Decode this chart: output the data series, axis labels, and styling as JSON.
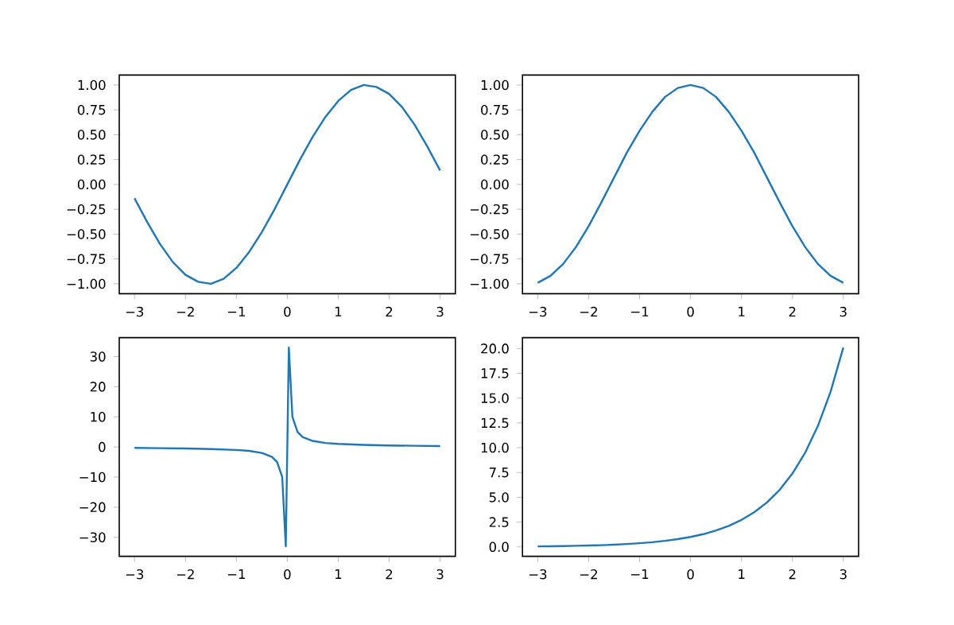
{
  "chart_data": [
    {
      "type": "line",
      "x": [
        -3,
        -2.75,
        -2.5,
        -2.25,
        -2,
        -1.75,
        -1.5,
        -1.25,
        -1,
        -0.75,
        -0.5,
        -0.25,
        0,
        0.25,
        0.5,
        0.75,
        1,
        1.25,
        1.5,
        1.75,
        2,
        2.25,
        2.5,
        2.75,
        3
      ],
      "series": [
        {
          "color": "#1f77b4",
          "values": [
            -0.14,
            -0.38,
            -0.6,
            -0.78,
            -0.91,
            -0.98,
            -1.0,
            -0.95,
            -0.84,
            -0.68,
            -0.48,
            -0.25,
            0,
            0.25,
            0.48,
            0.68,
            0.84,
            0.95,
            1.0,
            0.98,
            0.91,
            0.78,
            0.6,
            0.38,
            0.14
          ]
        }
      ],
      "xlim": [
        -3.3,
        3.3
      ],
      "ylim": [
        -1.1,
        1.1
      ],
      "xticks": [
        {
          "value": -3,
          "label": "−3"
        },
        {
          "value": -2,
          "label": "−2"
        },
        {
          "value": -1,
          "label": "−1"
        },
        0,
        1,
        2,
        3
      ],
      "yticks": [
        {
          "value": -1,
          "label": "−1.00"
        },
        {
          "value": -0.75,
          "label": "−0.75"
        },
        {
          "value": -0.5,
          "label": "−0.50"
        },
        {
          "value": -0.25,
          "label": "−0.25"
        },
        {
          "value": 0,
          "label": "0.00"
        },
        {
          "value": 0.25,
          "label": "0.25"
        },
        {
          "value": 0.5,
          "label": "0.50"
        },
        {
          "value": 0.75,
          "label": "0.75"
        },
        {
          "value": 1,
          "label": "1.00"
        }
      ]
    },
    {
      "type": "line",
      "x": [
        -3,
        -2.75,
        -2.5,
        -2.25,
        -2,
        -1.75,
        -1.5,
        -1.25,
        -1,
        -0.75,
        -0.5,
        -0.25,
        0,
        0.25,
        0.5,
        0.75,
        1,
        1.25,
        1.5,
        1.75,
        2,
        2.25,
        2.5,
        2.75,
        3
      ],
      "series": [
        {
          "color": "#1f77b4",
          "values": [
            -0.99,
            -0.92,
            -0.8,
            -0.63,
            -0.42,
            -0.18,
            0.07,
            0.32,
            0.54,
            0.73,
            0.88,
            0.97,
            1.0,
            0.97,
            0.88,
            0.73,
            0.54,
            0.32,
            0.07,
            -0.18,
            -0.42,
            -0.63,
            -0.8,
            -0.92,
            -0.99
          ]
        }
      ],
      "xlim": [
        -3.3,
        3.3
      ],
      "ylim": [
        -1.1,
        1.1
      ],
      "xticks": [
        {
          "value": -3,
          "label": "−3"
        },
        {
          "value": -2,
          "label": "−2"
        },
        {
          "value": -1,
          "label": "−1"
        },
        0,
        1,
        2,
        3
      ],
      "yticks": [
        {
          "value": -1,
          "label": "−1.00"
        },
        {
          "value": -0.75,
          "label": "−0.75"
        },
        {
          "value": -0.5,
          "label": "−0.50"
        },
        {
          "value": -0.25,
          "label": "−0.25"
        },
        {
          "value": 0,
          "label": "0.00"
        },
        {
          "value": 0.25,
          "label": "0.25"
        },
        {
          "value": 0.5,
          "label": "0.50"
        },
        {
          "value": 0.75,
          "label": "0.75"
        },
        {
          "value": 1,
          "label": "1.00"
        }
      ]
    },
    {
      "type": "line",
      "x": [
        -3,
        -2.5,
        -2,
        -1.5,
        -1,
        -0.75,
        -0.5,
        -0.3,
        -0.2,
        -0.1,
        -0.03,
        0.03,
        0.1,
        0.2,
        0.3,
        0.5,
        0.75,
        1,
        1.5,
        2,
        2.5,
        3
      ],
      "series": [
        {
          "color": "#1f77b4",
          "values": [
            -0.3,
            -0.4,
            -0.5,
            -0.7,
            -1,
            -1.3,
            -2,
            -3.3,
            -5,
            -10,
            -33,
            33,
            10,
            5,
            3.3,
            2,
            1.3,
            1,
            0.7,
            0.5,
            0.4,
            0.3
          ]
        }
      ],
      "xlim": [
        -3.3,
        3.3
      ],
      "ylim": [
        -36.3,
        36.3
      ],
      "xticks": [
        {
          "value": -3,
          "label": "−3"
        },
        {
          "value": -2,
          "label": "−2"
        },
        {
          "value": -1,
          "label": "−1"
        },
        0,
        1,
        2,
        3
      ],
      "yticks": [
        {
          "value": -30,
          "label": "−30"
        },
        {
          "value": -20,
          "label": "−20"
        },
        {
          "value": -10,
          "label": "−10"
        },
        0,
        10,
        20,
        30
      ]
    },
    {
      "type": "line",
      "x": [
        -3,
        -2.75,
        -2.5,
        -2.25,
        -2,
        -1.75,
        -1.5,
        -1.25,
        -1,
        -0.75,
        -0.5,
        -0.25,
        0,
        0.25,
        0.5,
        0.75,
        1,
        1.25,
        1.5,
        1.75,
        2,
        2.25,
        2.5,
        2.75,
        3
      ],
      "series": [
        {
          "color": "#1f77b4",
          "values": [
            0.05,
            0.06,
            0.08,
            0.11,
            0.14,
            0.17,
            0.22,
            0.29,
            0.37,
            0.47,
            0.61,
            0.78,
            1.0,
            1.28,
            1.65,
            2.12,
            2.72,
            3.49,
            4.48,
            5.75,
            7.39,
            9.49,
            12.18,
            15.64,
            20.09
          ]
        }
      ],
      "xlim": [
        -3.3,
        3.3
      ],
      "ylim": [
        -0.95,
        21.1
      ],
      "xticks": [
        {
          "value": -3,
          "label": "−3"
        },
        {
          "value": -2,
          "label": "−2"
        },
        {
          "value": -1,
          "label": "−1"
        },
        0,
        1,
        2,
        3
      ],
      "yticks": [
        {
          "value": 0,
          "label": "0.0"
        },
        {
          "value": 2.5,
          "label": "2.5"
        },
        {
          "value": 5,
          "label": "5.0"
        },
        {
          "value": 7.5,
          "label": "7.5"
        },
        {
          "value": 10,
          "label": "10.0"
        },
        {
          "value": 12.5,
          "label": "12.5"
        },
        {
          "value": 15,
          "label": "15.0"
        },
        {
          "value": 17.5,
          "label": "17.5"
        },
        {
          "value": 20,
          "label": "20.0"
        }
      ]
    }
  ]
}
